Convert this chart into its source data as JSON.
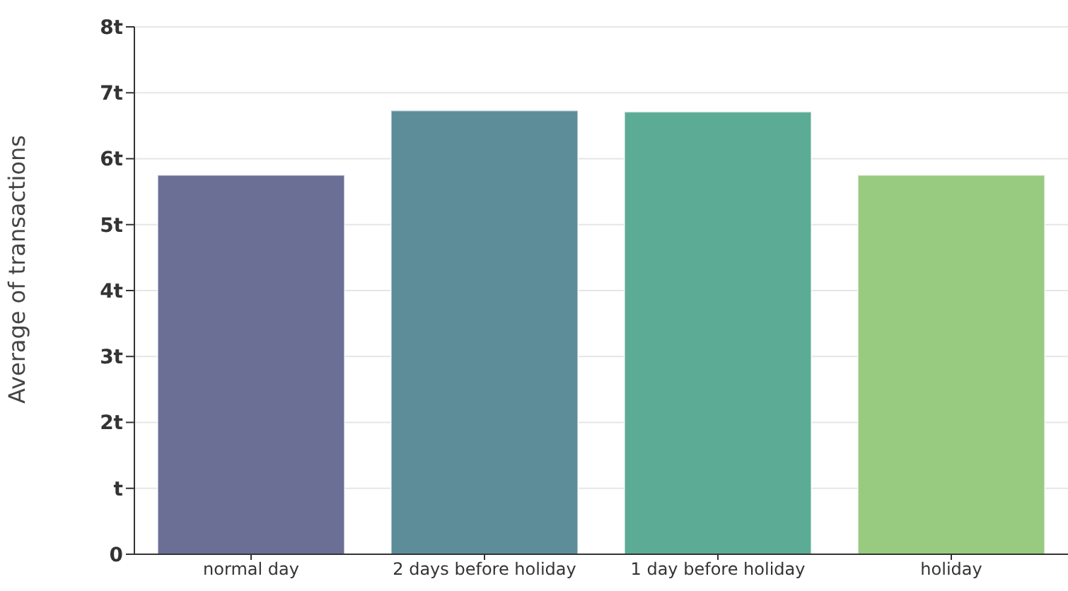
{
  "chart_data": {
    "type": "bar",
    "ylabel": "Average of transactions",
    "categories": [
      "normal day",
      "2 days before holiday",
      "1 day before holiday",
      "holiday"
    ],
    "values": [
      5.75,
      6.73,
      6.71,
      5.75
    ],
    "colors": [
      "#6b6f96",
      "#5c8d99",
      "#5cab95",
      "#98cb80"
    ],
    "ylim": [
      0,
      8
    ],
    "yticks": [
      0,
      {
        "value": 1,
        "label": "t"
      },
      {
        "value": 2,
        "label": "2t"
      },
      {
        "value": 3,
        "label": "3t"
      },
      {
        "value": 4,
        "label": "4t"
      },
      {
        "value": 5,
        "label": "5t"
      },
      {
        "value": 6,
        "label": "6t"
      },
      {
        "value": 7,
        "label": "7t"
      },
      {
        "value": 8,
        "label": "8t"
      }
    ],
    "grid": "y",
    "legend": false
  }
}
